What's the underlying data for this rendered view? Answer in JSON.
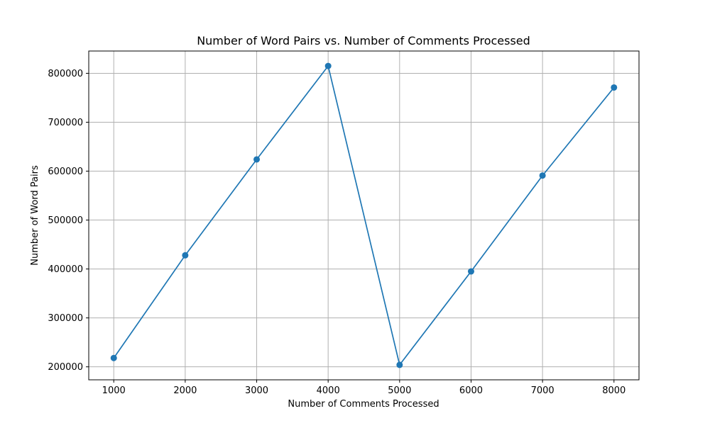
{
  "chart_data": {
    "type": "line",
    "title": "Number of Word Pairs vs. Number of Comments Processed",
    "xlabel": "Number of Comments Processed",
    "ylabel": "Number of Word Pairs",
    "x": [
      1000,
      2000,
      3000,
      4000,
      5000,
      6000,
      7000,
      8000
    ],
    "series": [
      {
        "values": [
          218000,
          428000,
          624000,
          815000,
          204000,
          395000,
          591000,
          771000
        ],
        "color": "#1f77b4",
        "marker": "circle"
      }
    ],
    "xticks": [
      "1000",
      "2000",
      "3000",
      "4000",
      "5000",
      "6000",
      "7000",
      "8000"
    ],
    "yticks": [
      "200000",
      "300000",
      "400000",
      "500000",
      "600000",
      "700000",
      "800000"
    ],
    "xlim": [
      650,
      8350
    ],
    "ylim": [
      173450,
      845550
    ],
    "grid": true,
    "legend": "none"
  }
}
